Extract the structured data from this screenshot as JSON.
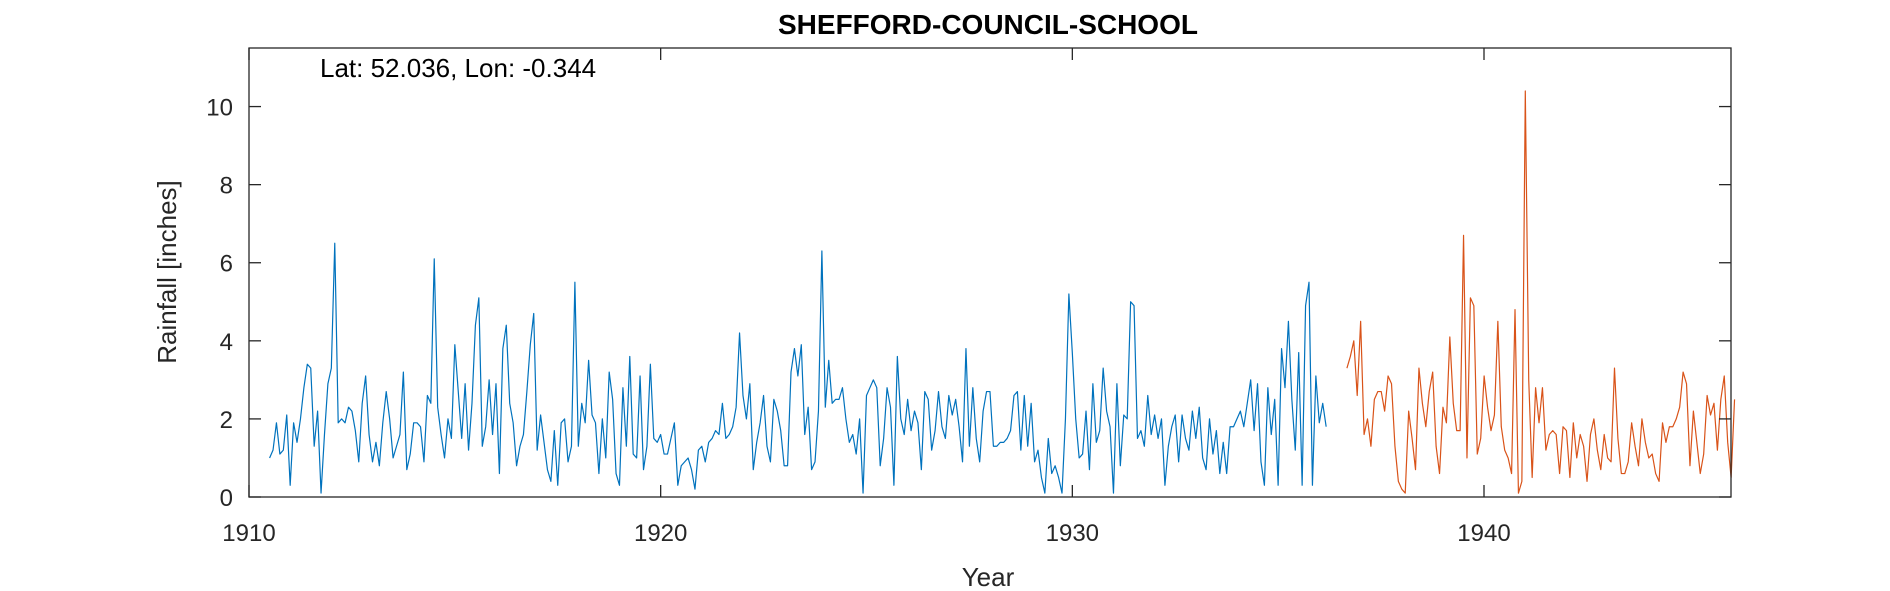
{
  "chart_data": {
    "type": "line",
    "title": "SHEFFORD-COUNCIL-SCHOOL",
    "annotation": "Lat: 52.036, Lon: -0.344",
    "xlabel": "Year",
    "ylabel": "Rainfall [inches]",
    "xlim": [
      1910,
      1946
    ],
    "ylim": [
      0,
      11.5
    ],
    "xticks": [
      1910,
      1920,
      1930,
      1940
    ],
    "yticks": [
      0,
      2,
      4,
      6,
      8,
      10
    ],
    "grid": false,
    "series": [
      {
        "color": "#0072BD",
        "x_start": 1910.5,
        "x_step": 0.08333,
        "values": [
          1.0,
          1.2,
          1.9,
          1.1,
          1.2,
          2.1,
          0.3,
          1.9,
          1.4,
          2.0,
          2.8,
          3.4,
          3.3,
          1.3,
          2.2,
          0.1,
          1.6,
          2.9,
          3.3,
          6.5,
          1.9,
          2.0,
          1.9,
          2.3,
          2.2,
          1.7,
          0.9,
          2.4,
          3.1,
          1.6,
          0.9,
          1.4,
          0.8,
          1.9,
          2.7,
          2.0,
          1.0,
          1.3,
          1.6,
          3.2,
          0.7,
          1.1,
          1.9,
          1.9,
          1.8,
          0.9,
          2.6,
          2.4,
          6.1,
          2.3,
          1.6,
          1.0,
          2.0,
          1.5,
          3.9,
          2.7,
          1.5,
          2.9,
          1.2,
          2.4,
          4.4,
          5.1,
          1.3,
          1.8,
          3.0,
          1.6,
          2.9,
          0.6,
          3.8,
          4.4,
          2.4,
          1.9,
          0.8,
          1.3,
          1.6,
          2.7,
          3.9,
          4.7,
          1.2,
          2.1,
          1.4,
          0.7,
          0.4,
          1.7,
          0.3,
          1.9,
          2.0,
          0.9,
          1.3,
          5.5,
          1.3,
          2.4,
          1.9,
          3.5,
          2.1,
          1.9,
          0.6,
          2.0,
          1.0,
          3.2,
          2.5,
          0.6,
          0.3,
          2.8,
          1.3,
          3.6,
          1.1,
          1.0,
          3.1,
          0.7,
          1.3,
          3.4,
          1.5,
          1.4,
          1.6,
          1.1,
          1.1,
          1.5,
          1.9,
          0.3,
          0.8,
          0.9,
          1.0,
          0.7,
          0.2,
          1.2,
          1.3,
          0.9,
          1.4,
          1.5,
          1.7,
          1.6,
          2.4,
          1.5,
          1.6,
          1.8,
          2.3,
          4.2,
          2.6,
          2.0,
          2.9,
          0.7,
          1.4,
          1.9,
          2.6,
          1.3,
          0.9,
          2.5,
          2.2,
          1.7,
          0.8,
          0.8,
          3.2,
          3.8,
          3.1,
          3.9,
          1.6,
          2.3,
          0.7,
          0.9,
          2.2,
          6.3,
          2.3,
          3.5,
          2.4,
          2.5,
          2.5,
          2.8,
          2.0,
          1.4,
          1.6,
          1.1,
          2.0,
          0.1,
          2.6,
          2.8,
          3.0,
          2.8,
          0.8,
          1.5,
          2.8,
          2.3,
          0.3,
          3.6,
          2.0,
          1.6,
          2.5,
          1.7,
          2.2,
          1.9,
          0.7,
          2.7,
          2.5,
          1.2,
          1.7,
          2.7,
          1.8,
          1.5,
          2.6,
          2.1,
          2.5,
          1.8,
          0.9,
          3.8,
          1.3,
          2.8,
          1.5,
          0.9,
          2.2,
          2.7,
          2.7,
          1.3,
          1.3,
          1.4,
          1.4,
          1.5,
          1.7,
          2.6,
          2.7,
          1.2,
          2.6,
          1.3,
          2.4,
          0.9,
          1.2,
          0.5,
          0.1,
          1.5,
          0.6,
          0.8,
          0.5,
          0.1,
          2.0,
          5.2,
          3.7,
          2.0,
          1.0,
          1.1,
          2.2,
          0.7,
          2.9,
          1.4,
          1.7,
          3.3,
          2.2,
          1.8,
          0.1,
          2.9,
          0.8,
          2.1,
          2.0,
          5.0,
          4.9,
          1.5,
          1.7,
          1.3,
          2.6,
          1.6,
          2.1,
          1.5,
          2.0,
          0.3,
          1.3,
          1.8,
          2.1,
          0.9,
          2.1,
          1.5,
          1.2,
          2.2,
          1.5,
          2.3,
          1.0,
          0.7,
          2.0,
          1.1,
          1.7,
          0.6,
          1.4,
          0.6,
          1.8,
          1.8,
          2.0,
          2.2,
          1.8,
          2.4,
          3.0,
          1.7,
          2.9,
          0.9,
          0.3,
          2.8,
          1.6,
          2.5,
          0.3,
          3.8,
          2.8,
          4.5,
          2.5,
          1.2,
          3.7,
          0.3,
          4.9,
          5.5,
          0.3,
          3.1,
          1.9,
          2.4,
          1.8
        ]
      },
      {
        "color": "#D95319",
        "x_start": 1936.67,
        "x_step": 0.08333,
        "values": [
          3.3,
          3.6,
          4.0,
          2.6,
          4.5,
          1.6,
          2.0,
          1.3,
          2.5,
          2.7,
          2.7,
          2.2,
          3.1,
          2.9,
          1.3,
          0.4,
          0.2,
          0.1,
          2.2,
          1.5,
          0.7,
          3.3,
          2.4,
          1.8,
          2.7,
          3.2,
          1.3,
          0.6,
          2.3,
          1.9,
          4.1,
          2.4,
          1.7,
          1.7,
          6.7,
          1.0,
          5.1,
          4.9,
          1.1,
          1.5,
          3.1,
          2.3,
          1.7,
          2.1,
          4.5,
          1.8,
          1.2,
          1.0,
          0.6,
          4.8,
          0.1,
          0.4,
          10.4,
          3.0,
          0.5,
          2.8,
          1.9,
          2.8,
          1.2,
          1.6,
          1.7,
          1.6,
          0.6,
          1.8,
          1.7,
          0.5,
          1.9,
          1.0,
          1.6,
          1.3,
          0.4,
          1.6,
          2.0,
          1.2,
          0.7,
          1.6,
          1.0,
          0.9,
          3.3,
          1.5,
          0.6,
          0.6,
          0.9,
          1.9,
          1.3,
          0.8,
          2.0,
          1.4,
          1.0,
          1.1,
          0.6,
          0.4,
          1.9,
          1.4,
          1.8,
          1.8,
          2.0,
          2.3,
          3.2,
          2.9,
          0.8,
          2.2,
          1.4,
          0.6,
          1.1,
          2.6,
          2.1,
          2.4,
          1.2,
          2.5,
          3.1,
          1.4,
          0.5,
          2.5
        ]
      }
    ]
  }
}
